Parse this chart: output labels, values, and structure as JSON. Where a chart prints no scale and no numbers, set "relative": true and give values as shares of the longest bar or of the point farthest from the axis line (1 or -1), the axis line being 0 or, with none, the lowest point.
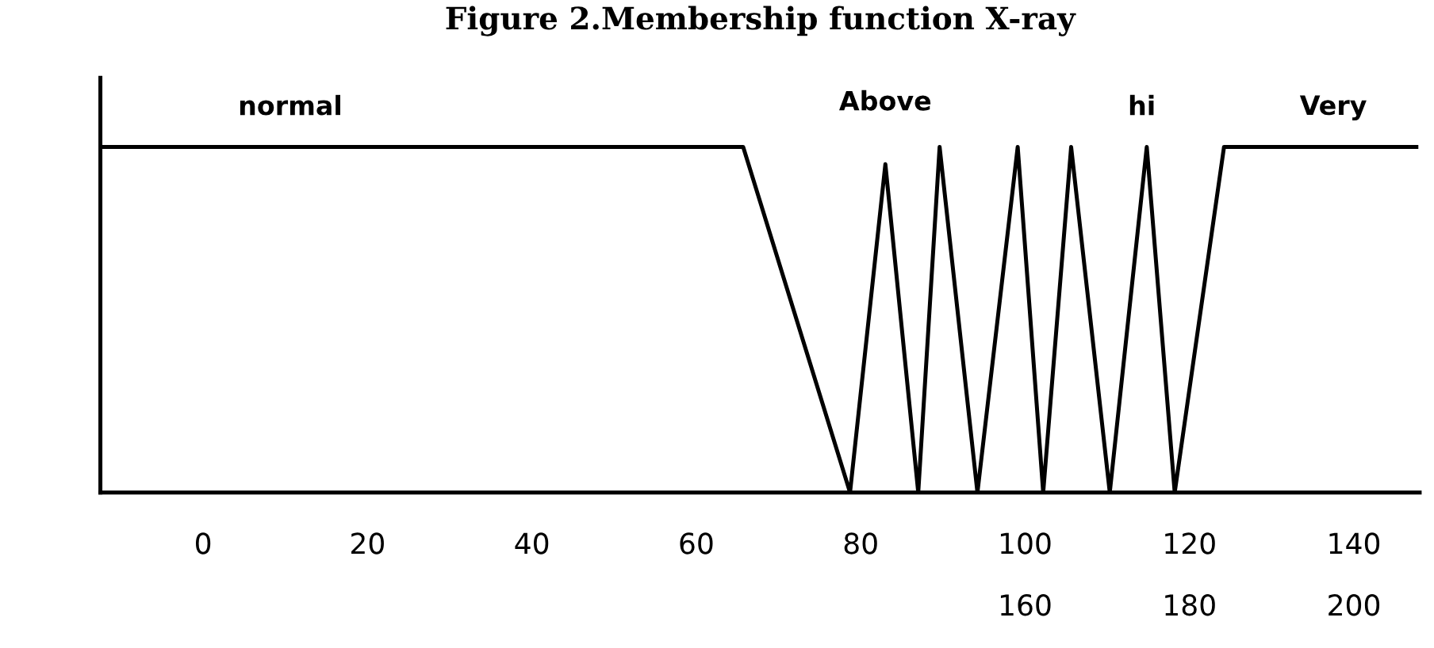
{
  "chart_data": {
    "type": "line",
    "title": "Figure 2.Membership function X-ray",
    "relative": true,
    "x": [
      -12.5,
      65.7,
      78.7,
      83.0,
      87.0,
      89.6,
      94.2,
      99.1,
      102.2,
      105.6,
      110.3,
      114.8,
      118.2,
      124.2,
      147.6
    ],
    "series": [
      {
        "color": "#000000",
        "values": [
          1,
          1,
          0,
          0.95,
          0,
          1,
          0,
          1,
          0,
          1,
          0,
          1,
          0,
          1,
          1
        ]
      }
    ],
    "xlim": [
      -12.5,
      148
    ],
    "xticks": [
      0,
      20,
      40,
      60,
      80,
      100,
      120,
      140
    ],
    "annotations": [
      {
        "text": "normal",
        "x": 10.6,
        "y": 1
      },
      {
        "text": "Above",
        "x": 83.0,
        "y": 0.95
      },
      {
        "text": "hi",
        "x": 114.2,
        "y": 1
      },
      {
        "text": "Very",
        "x": 137.5,
        "y": 1
      },
      "160",
      "180",
      "200"
    ],
    "grid": false,
    "legend": false,
    "marker": "none",
    "line_style": "solid"
  }
}
